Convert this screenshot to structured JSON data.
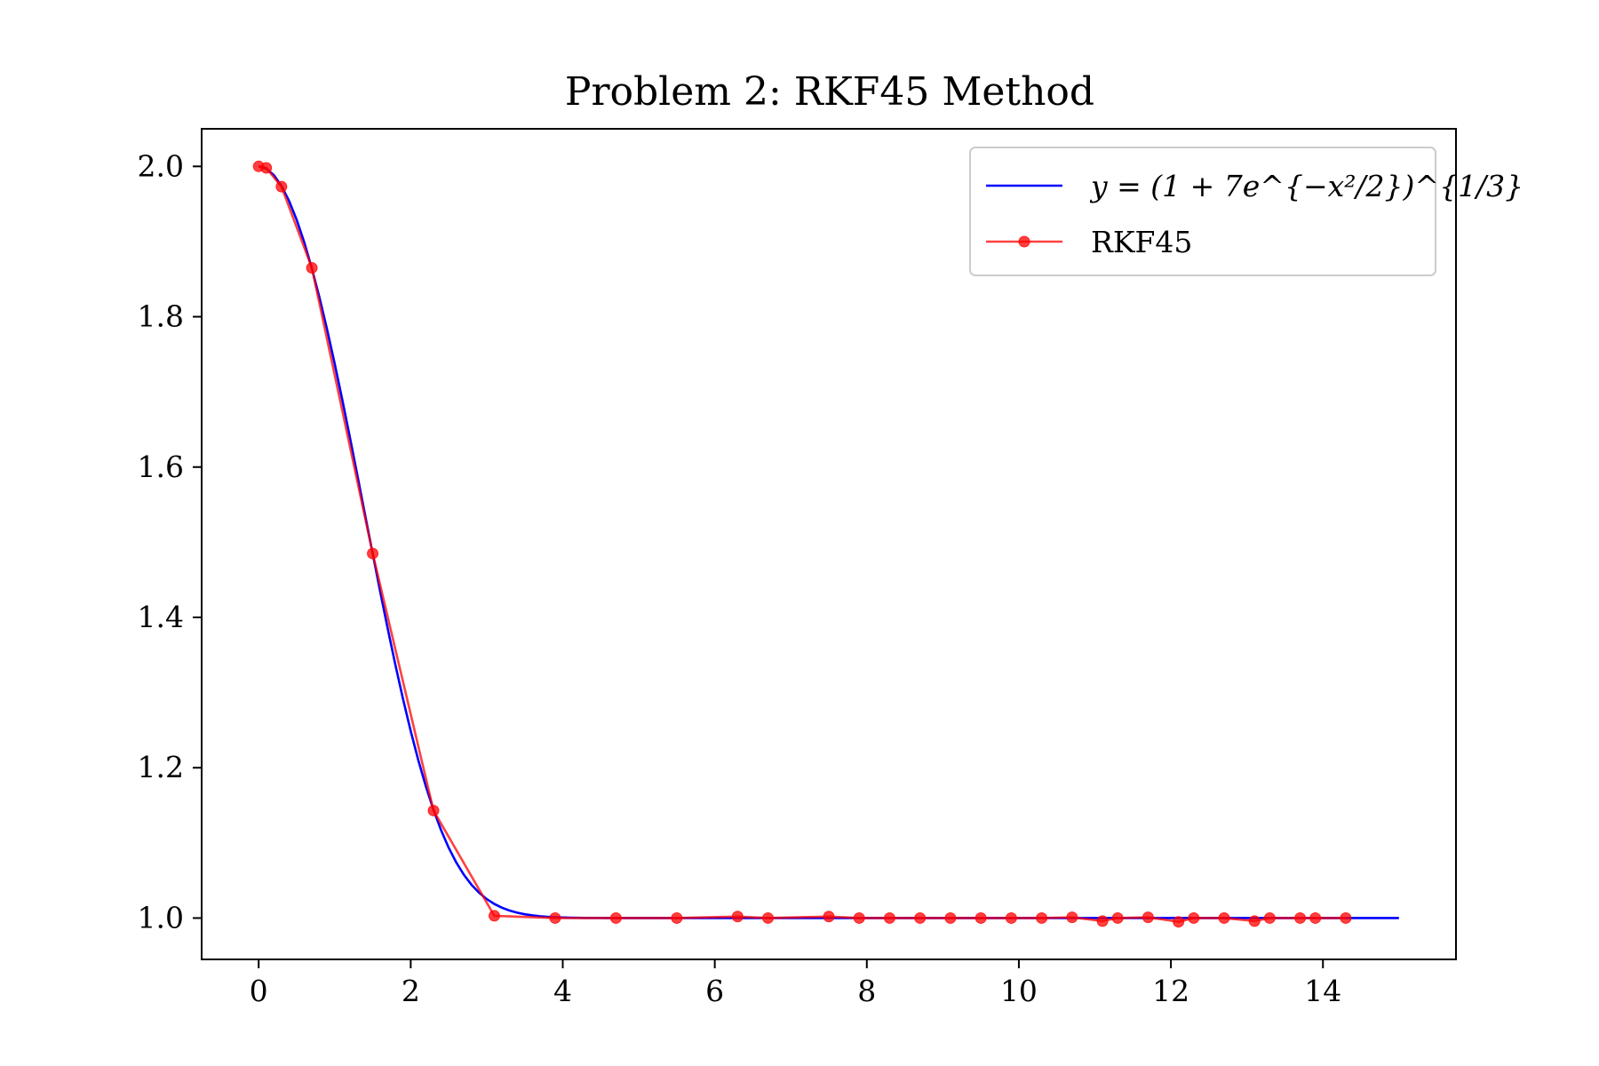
{
  "chart_data": {
    "type": "line",
    "title": "Problem 2: RKF45 Method",
    "xlabel": "",
    "ylabel": "",
    "xlim": [
      -0.75,
      15.75
    ],
    "ylim": [
      0.945,
      2.05
    ],
    "grid": false,
    "legend_position": "top-right",
    "x_ticks": [
      0,
      2,
      4,
      6,
      8,
      10,
      12,
      14
    ],
    "y_ticks": [
      1.0,
      1.2,
      1.4,
      1.6,
      1.8,
      2.0
    ],
    "x_tick_labels": [
      "0",
      "2",
      "4",
      "6",
      "8",
      "10",
      "12",
      "14"
    ],
    "y_tick_labels": [
      "1.0",
      "1.2",
      "1.4",
      "1.6",
      "1.8",
      "2.0"
    ],
    "series": [
      {
        "name": "y = (1 + 7e^{−x²/2})^{1/3}",
        "color": "#0000ff",
        "kind": "curve",
        "function": "(1+7*exp(-x^2/2))^(1/3)",
        "x_range": [
          0,
          15
        ]
      },
      {
        "name": "RKF45",
        "color": "#ff0000",
        "kind": "line-markers",
        "x": [
          0,
          0.1,
          0.3,
          0.7,
          1.5,
          2.3,
          3.1,
          3.9,
          4.7,
          5.5,
          6.3,
          6.7,
          7.5,
          7.9,
          8.3,
          8.7,
          9.1,
          9.5,
          9.9,
          10.3,
          10.7,
          11.1,
          11.3,
          11.7,
          12.1,
          12.3,
          12.7,
          13.1,
          13.3,
          13.7,
          13.9,
          14.3
        ],
        "y": [
          2.0,
          1.998,
          1.973,
          1.865,
          1.485,
          1.143,
          1.003,
          1.0,
          1.0,
          1.0,
          1.002,
          1.0,
          1.002,
          1.0,
          1.0,
          1.0,
          1.0,
          1.0,
          1.0,
          1.0,
          1.001,
          0.996,
          1.0,
          1.001,
          0.995,
          1.0,
          1.0,
          0.996,
          1.0,
          1.0,
          1.0,
          1.0
        ]
      }
    ]
  }
}
